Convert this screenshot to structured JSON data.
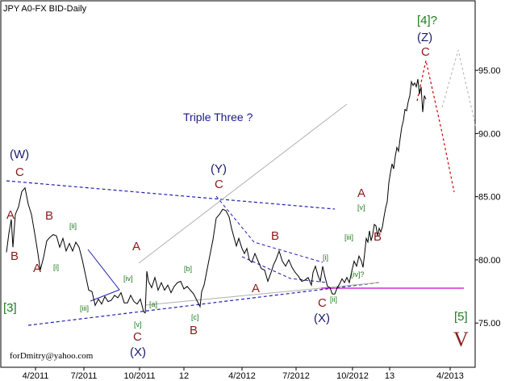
{
  "chart_data": {
    "type": "line",
    "title": "JPY A0-FX BID-Daily",
    "xlabel": "",
    "ylabel": "",
    "x_ticks": [
      "4/2011",
      "7/2011",
      "10/2011",
      "12",
      "4/2012",
      "7/2012",
      "10/2012",
      "13",
      "4/2013"
    ],
    "y_ticks": [
      "75.00",
      "80.00",
      "85.00",
      "90.00",
      "95.00"
    ],
    "ylim": [
      71.5,
      100.5
    ],
    "grid": false,
    "series": [
      {
        "values": [
          [
            0,
            80.6
          ],
          [
            3,
            82.1
          ],
          [
            6,
            83.2
          ],
          [
            8,
            81.0
          ],
          [
            11,
            83.6
          ],
          [
            15,
            84.2
          ],
          [
            19,
            85.4
          ],
          [
            23,
            85.7
          ],
          [
            27,
            84.4
          ],
          [
            31,
            83.6
          ],
          [
            35,
            82.1
          ],
          [
            39,
            80.5
          ],
          [
            42,
            79.2
          ],
          [
            46,
            80.2
          ],
          [
            50,
            81.5
          ],
          [
            54,
            81.8
          ],
          [
            58,
            82.0
          ],
          [
            62,
            81.9
          ],
          [
            66,
            81.0
          ],
          [
            70,
            81.7
          ],
          [
            74,
            80.7
          ],
          [
            78,
            81.3
          ],
          [
            82,
            80.7
          ],
          [
            86,
            81.4
          ],
          [
            90,
            81.0
          ],
          [
            94,
            80.0
          ],
          [
            98,
            78.8
          ],
          [
            102,
            77.6
          ],
          [
            106,
            77.5
          ],
          [
            110,
            76.4
          ],
          [
            114,
            76.9
          ],
          [
            118,
            76.5
          ],
          [
            122,
            77.1
          ],
          [
            126,
            76.7
          ],
          [
            130,
            76.8
          ],
          [
            134,
            77.2
          ],
          [
            138,
            77.0
          ],
          [
            142,
            77.4
          ],
          [
            146,
            76.6
          ],
          [
            150,
            76.6
          ],
          [
            154,
            77.2
          ],
          [
            158,
            76.7
          ],
          [
            162,
            76.5
          ],
          [
            166,
            76.9
          ],
          [
            170,
            75.9
          ],
          [
            172,
            75.8
          ],
          [
            174,
            79.1
          ],
          [
            176,
            78.3
          ],
          [
            180,
            77.8
          ],
          [
            184,
            78.6
          ],
          [
            188,
            77.6
          ],
          [
            192,
            78.2
          ],
          [
            196,
            77.6
          ],
          [
            200,
            78.0
          ],
          [
            204,
            77.4
          ],
          [
            208,
            77.9
          ],
          [
            212,
            78.2
          ],
          [
            216,
            78.3
          ],
          [
            220,
            77.7
          ],
          [
            224,
            77.9
          ],
          [
            228,
            77.6
          ],
          [
            232,
            77.3
          ],
          [
            236,
            76.8
          ],
          [
            240,
            76.3
          ],
          [
            242,
            77.5
          ],
          [
            245,
            78.0
          ],
          [
            248,
            79.0
          ],
          [
            252,
            80.3
          ],
          [
            256,
            81.6
          ],
          [
            260,
            83.3
          ],
          [
            264,
            83.6
          ],
          [
            268,
            84.0
          ],
          [
            272,
            83.9
          ],
          [
            276,
            83.4
          ],
          [
            279,
            82.5
          ],
          [
            282,
            81.8
          ],
          [
            285,
            81.1
          ],
          [
            288,
            81.7
          ],
          [
            292,
            80.9
          ],
          [
            295,
            80.5
          ],
          [
            298,
            80.9
          ],
          [
            301,
            80.0
          ],
          [
            304,
            79.8
          ],
          [
            308,
            80.5
          ],
          [
            312,
            79.9
          ],
          [
            316,
            79.3
          ],
          [
            320,
            79.2
          ],
          [
            324,
            78.3
          ],
          [
            328,
            79.0
          ],
          [
            331,
            79.6
          ],
          [
            334,
            80.0
          ],
          [
            338,
            80.7
          ],
          [
            342,
            79.9
          ],
          [
            346,
            79.5
          ],
          [
            350,
            80.0
          ],
          [
            354,
            79.4
          ],
          [
            358,
            79.0
          ],
          [
            362,
            78.7
          ],
          [
            366,
            78.3
          ],
          [
            370,
            78.4
          ],
          [
            374,
            78.6
          ],
          [
            378,
            78.0
          ],
          [
            380,
            79.0
          ],
          [
            383,
            79.5
          ],
          [
            386,
            78.8
          ],
          [
            389,
            78.3
          ],
          [
            392,
            79.5
          ],
          [
            395,
            78.6
          ],
          [
            398,
            77.9
          ],
          [
            401,
            77.8
          ],
          [
            404,
            77.3
          ],
          [
            407,
            77.3
          ],
          [
            410,
            77.8
          ],
          [
            413,
            78.1
          ],
          [
            416,
            78.5
          ],
          [
            419,
            78.2
          ],
          [
            422,
            78.6
          ],
          [
            425,
            78.2
          ],
          [
            428,
            79.1
          ],
          [
            431,
            79.9
          ],
          [
            434,
            79.5
          ],
          [
            437,
            80.3
          ],
          [
            440,
            79.9
          ],
          [
            442,
            79.4
          ],
          [
            444,
            80.5
          ],
          [
            446,
            81.7
          ],
          [
            448,
            81.4
          ],
          [
            450,
            82.3
          ],
          [
            452,
            81.5
          ],
          [
            454,
            82.0
          ],
          [
            456,
            82.8
          ],
          [
            458,
            82.7
          ],
          [
            460,
            81.9
          ],
          [
            462,
            82.5
          ],
          [
            464,
            82.2
          ],
          [
            466,
            82.6
          ],
          [
            468,
            83.4
          ],
          [
            470,
            84.1
          ],
          [
            472,
            84.6
          ],
          [
            474,
            86.1
          ],
          [
            476,
            86.9
          ],
          [
            478,
            87.6
          ],
          [
            480,
            87.2
          ],
          [
            482,
            88.2
          ],
          [
            484,
            88.9
          ],
          [
            486,
            88.6
          ],
          [
            488,
            89.6
          ],
          [
            490,
            90.5
          ],
          [
            492,
            91.0
          ],
          [
            494,
            91.9
          ],
          [
            496,
            91.8
          ],
          [
            498,
            92.5
          ],
          [
            500,
            93.0
          ],
          [
            502,
            94.1
          ],
          [
            504,
            93.8
          ],
          [
            506,
            94.0
          ],
          [
            508,
            93.7
          ],
          [
            510,
            94.3
          ],
          [
            512,
            93.1
          ],
          [
            514,
            93.7
          ],
          [
            516,
            91.7
          ],
          [
            518,
            93.0
          ],
          [
            520,
            92.7
          ]
        ]
      }
    ],
    "annotations": {
      "note": "Triple Three ?",
      "credit": "forDmitry@yahoo.com",
      "red_labels": [
        "A",
        "B",
        "C",
        "A",
        "B",
        "C",
        "A",
        "C",
        "A",
        "B",
        "A",
        "B",
        "C",
        "C"
      ],
      "navy_labels": [
        "(W)",
        "(X)",
        "(Y)",
        "(X)",
        "(Z)"
      ],
      "green_labels": [
        "[3]",
        "[4]?",
        "[5]"
      ],
      "small_labels": [
        "[i]",
        "[ii]",
        "[iii]",
        "[iv]",
        "[v]",
        "[a]",
        "[b]",
        "[c]",
        "[i]",
        "[ii]",
        "[iii]",
        "[iv]?",
        "[v]"
      ],
      "big_label": "V"
    }
  }
}
